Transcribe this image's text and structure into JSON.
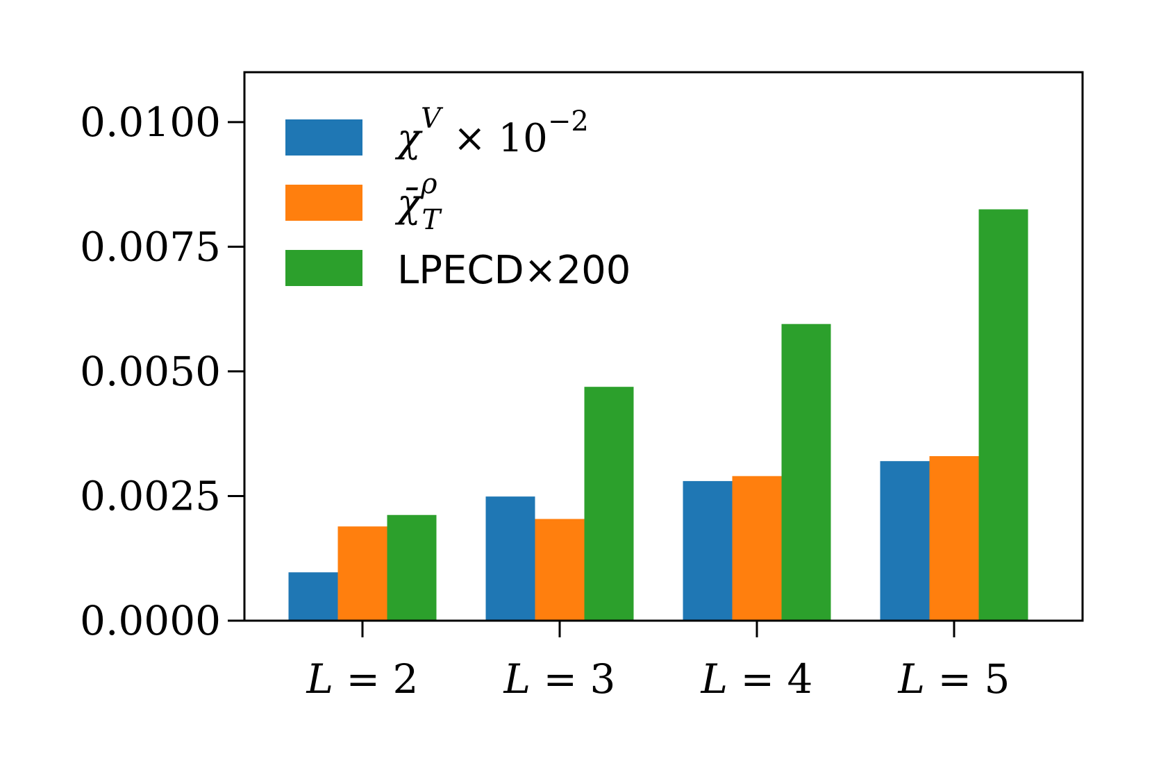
{
  "chart_data": {
    "type": "bar",
    "categories": [
      "L = 2",
      "L = 3",
      "L = 4",
      "L = 5"
    ],
    "series": [
      {
        "name": "χV × 10−2",
        "color": "#1f77b4",
        "values": [
          0.00097,
          0.00249,
          0.0028,
          0.0032
        ]
      },
      {
        "name": "χ̄ρT",
        "color": "#ff7f0e",
        "values": [
          0.00189,
          0.00204,
          0.0029,
          0.0033
        ]
      },
      {
        "name": "LPECD×200",
        "color": "#2ca02c",
        "values": [
          0.00212,
          0.00469,
          0.00595,
          0.00825
        ]
      }
    ],
    "yticks": [
      "0.0000",
      "0.0025",
      "0.0050",
      "0.0075",
      "0.0100"
    ],
    "ylim": [
      0,
      0.011
    ],
    "legend_position": "upper-left",
    "grid": false,
    "legend": {
      "chi_v": {
        "base": "χ",
        "sup": "V",
        "rest": "× 10",
        "exp": "−2"
      },
      "chi_t": {
        "base": "χ̄",
        "sup": "ρ",
        "sub": "T"
      },
      "lpecd": "LPECD×200"
    }
  }
}
